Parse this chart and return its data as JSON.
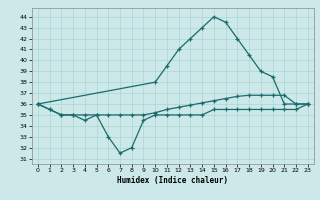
{
  "xlabel": "Humidex (Indice chaleur)",
  "bg_color": "#cce8e8",
  "grid_color": "#aad4d4",
  "line_color": "#1a6b6b",
  "xlim": [
    -0.5,
    23.5
  ],
  "ylim": [
    30.5,
    44.8
  ],
  "yticks": [
    31,
    32,
    33,
    34,
    35,
    36,
    37,
    38,
    39,
    40,
    41,
    42,
    43,
    44
  ],
  "xticks": [
    0,
    1,
    2,
    3,
    4,
    5,
    6,
    7,
    8,
    9,
    10,
    11,
    12,
    13,
    14,
    15,
    16,
    17,
    18,
    19,
    20,
    21,
    22,
    23
  ],
  "line1_x": [
    0,
    1,
    2,
    3,
    4,
    5,
    6,
    7,
    8,
    9,
    10,
    11,
    12,
    13,
    14,
    15,
    16,
    17,
    18,
    19,
    20,
    21,
    22,
    23
  ],
  "line1_y": [
    36,
    35.5,
    35,
    35,
    34.5,
    35,
    33,
    31.5,
    32,
    34.5,
    35,
    35,
    35,
    35,
    35,
    35.5,
    35.5,
    35.5,
    35.5,
    35.5,
    35.5,
    35.5,
    35.5,
    36
  ],
  "line2_x": [
    0,
    10,
    11,
    12,
    13,
    14,
    15,
    16,
    17,
    18,
    19,
    20,
    21,
    22,
    23
  ],
  "line2_y": [
    36,
    38,
    39.5,
    41,
    42,
    43,
    44,
    43.5,
    42,
    40.5,
    39,
    38.5,
    36,
    36,
    36
  ],
  "line3_x": [
    0,
    1,
    2,
    3,
    4,
    5,
    6,
    7,
    8,
    9,
    10,
    11,
    12,
    13,
    14,
    15,
    16,
    17,
    18,
    19,
    20,
    21,
    22,
    23
  ],
  "line3_y": [
    36,
    35.5,
    35,
    35,
    35,
    35,
    35,
    35,
    35,
    35,
    35.2,
    35.5,
    35.7,
    35.9,
    36.1,
    36.3,
    36.5,
    36.7,
    36.8,
    36.8,
    36.8,
    36.8,
    36,
    36
  ]
}
